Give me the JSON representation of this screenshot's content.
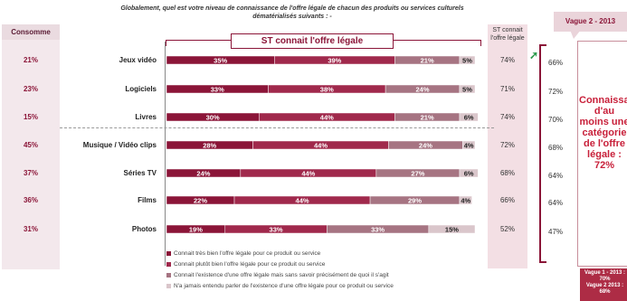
{
  "question": "Globalement, quel est votre niveau de connaissance de l'offre légale de chacun des produits ou services culturels dématérialisés suivants : -",
  "consomme_header": "Consomme",
  "st_label": "ST connait l'offre légale",
  "st_column_header": "ST connait l'offre légale",
  "vague_label": "Vague 2 - 2013",
  "summary_text": "Connaissance d'au moins une catégorie de l'offre légale :\n72%",
  "v1v2_text": "Vague 1 - 2013 : 70%\nVague 2 2013 : 68%",
  "colors": {
    "very_well": "#8b1538",
    "rather_well": "#a0294c",
    "exists_only": "#a67482",
    "never_heard": "#dac6cb",
    "accent": "#8b1538"
  },
  "legend": [
    {
      "label": "Connait très bien l'offre légale pour ce produit ou service",
      "color": "#8b1538"
    },
    {
      "label": "Connait plutôt bien l'offre légale pour ce produit ou service",
      "color": "#a0294c"
    },
    {
      "label": "Connait l'existence d'une offre légale mais sans savoir précisément de quoi il s'agit",
      "color": "#a67482"
    },
    {
      "label": "N'a jamais entendu parler de l'existence d'une offre légale pour ce produit ou service",
      "color": "#dac6cb"
    }
  ],
  "chart_data": {
    "type": "bar",
    "orientation": "horizontal",
    "stacked": true,
    "title": "Globalement, quel est votre niveau de connaissance de l'offre légale de chacun des produits ou services culturels dématérialisés suivants : -",
    "categories": [
      "Jeux vidéo",
      "Logiciels",
      "Livres",
      "Musique / Vidéo clips",
      "Séries TV",
      "Films",
      "Photos"
    ],
    "series": [
      {
        "name": "Connait très bien l'offre légale pour ce produit ou service",
        "values": [
          35,
          33,
          30,
          28,
          24,
          22,
          19
        ]
      },
      {
        "name": "Connait plutôt bien l'offre légale pour ce produit ou service",
        "values": [
          39,
          38,
          44,
          44,
          44,
          44,
          33
        ]
      },
      {
        "name": "Connait l'existence d'une offre légale mais sans savoir précisément de quoi il s'agit",
        "values": [
          21,
          24,
          21,
          24,
          27,
          29,
          33
        ]
      },
      {
        "name": "N'a jamais entendu parler de l'existence d'une offre légale pour ce produit ou service",
        "values": [
          5,
          5,
          6,
          4,
          6,
          4,
          15
        ]
      }
    ],
    "consomme": [
      "21%",
      "23%",
      "15%",
      "45%",
      "37%",
      "36%",
      "31%"
    ],
    "st_connait": [
      "74%",
      "71%",
      "74%",
      "72%",
      "68%",
      "66%",
      "52%"
    ],
    "vague1": [
      "66%",
      "72%",
      "70%",
      "68%",
      "64%",
      "64%",
      "47%"
    ],
    "xlim": [
      0,
      100
    ],
    "legend_position": "bottom"
  }
}
